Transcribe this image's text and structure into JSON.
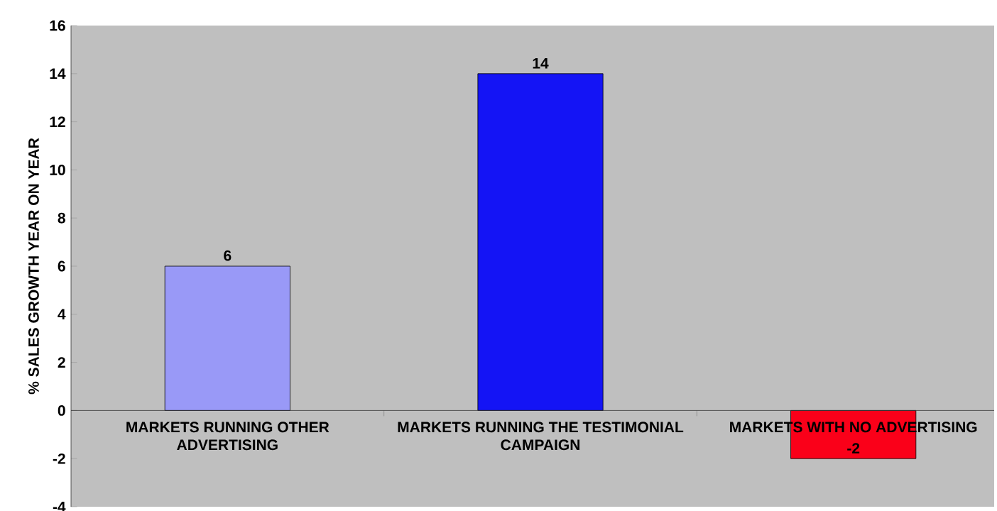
{
  "chart_data": {
    "type": "bar",
    "ylabel": "% SALES GROWTH YEAR ON YEAR",
    "categories": [
      "MARKETS RUNNING OTHER ADVERTISING",
      "MARKETS RUNNING THE TESTIMONIAL CAMPAIGN",
      "MARKETS WITH NO ADVERTISING"
    ],
    "values": [
      6,
      14,
      -2
    ],
    "colors": [
      "#9999f7",
      "#1414f5",
      "#fa0019"
    ],
    "ylim": [
      -4,
      16
    ],
    "yticks": [
      -4,
      -2,
      0,
      2,
      4,
      6,
      8,
      10,
      12,
      14,
      16
    ],
    "data_labels": true
  }
}
